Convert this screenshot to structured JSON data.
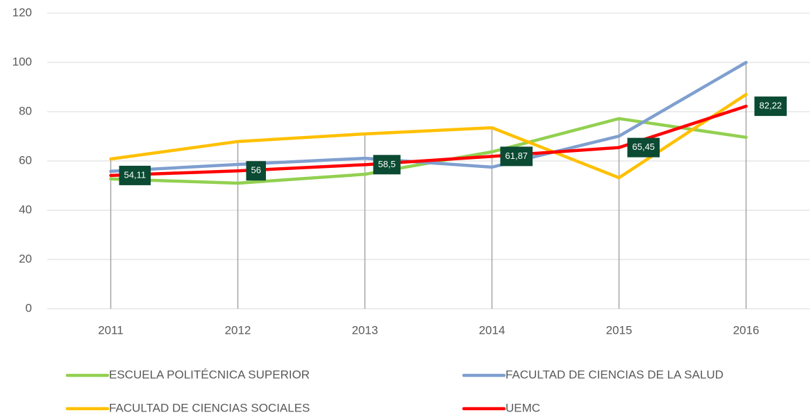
{
  "chart_data": {
    "type": "line",
    "categories": [
      "2011",
      "2012",
      "2013",
      "2014",
      "2015",
      "2016"
    ],
    "series": [
      {
        "name": "ESCUELA POLITÉCNICA SUPERIOR",
        "color": "#92d050",
        "values": [
          52.7,
          51,
          54.6,
          63.7,
          77.2,
          69.6
        ]
      },
      {
        "name": "FACULTAD DE CIENCIAS DE LA SALUD",
        "color": "#7f9fcf",
        "values": [
          55.8,
          58.6,
          61.1,
          57.5,
          70.1,
          100
        ]
      },
      {
        "name": "FACULTAD DE CIENCIAS SOCIALES",
        "color": "#ffc000",
        "values": [
          60.8,
          67.9,
          71,
          73.5,
          53.2,
          87
        ]
      },
      {
        "name": "UEMC",
        "color": "#ff0000",
        "values": [
          54.11,
          56,
          58.5,
          61.87,
          65.45,
          82.22
        ],
        "value_labels": [
          "54,11",
          "56",
          "58,5",
          "61,87",
          "65,45",
          "82,22"
        ]
      }
    ],
    "ylim": [
      0,
      120
    ],
    "yticks": [
      0,
      20,
      40,
      60,
      80,
      100,
      120
    ],
    "grid": true,
    "legend": "bottom"
  }
}
